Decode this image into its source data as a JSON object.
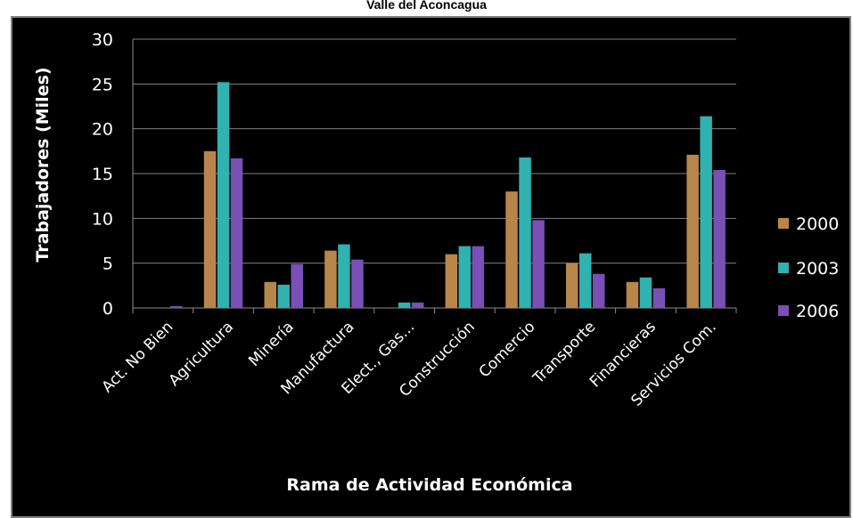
{
  "chart_data": {
    "type": "bar",
    "title": "Valle del Aconcagua",
    "xlabel": "Rama de Actividad Económica",
    "ylabel": "Trabajadores (Miles)",
    "ylim": [
      0,
      30
    ],
    "yticks": [
      "0",
      "5",
      "10",
      "15",
      "20",
      "25",
      "30"
    ],
    "grid": true,
    "legend_position": "right",
    "categories": [
      "Act. No Bien",
      "Agricultura",
      "Minería",
      "Manufactura",
      "Elect., Gas...",
      "Construcción",
      "Comercio",
      "Transporte",
      "Financieras",
      "Servicios Com."
    ],
    "series": [
      {
        "name": "2000",
        "color": "#b8864a",
        "values": [
          0,
          17.5,
          2.9,
          6.4,
          0,
          6.0,
          13.0,
          5.0,
          2.9,
          17.1
        ]
      },
      {
        "name": "2003",
        "color": "#2fb2b0",
        "values": [
          0,
          25.2,
          2.6,
          7.1,
          0.6,
          6.9,
          16.8,
          6.1,
          3.4,
          21.4
        ]
      },
      {
        "name": "2006",
        "color": "#7a4fb6",
        "values": [
          0.2,
          16.7,
          4.9,
          5.4,
          0.6,
          6.9,
          9.8,
          3.8,
          2.2,
          15.4
        ]
      }
    ]
  }
}
